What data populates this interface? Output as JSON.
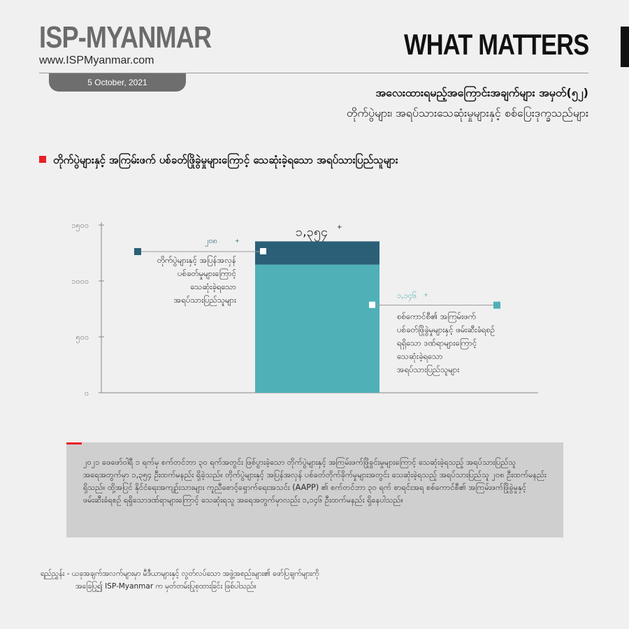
{
  "brand": {
    "name": "ISP-MYANMAR",
    "url": "www.ISPMyanmar.com",
    "date": "5 October, 2021",
    "series_title": "WHAT MATTERS"
  },
  "title": {
    "line1": "အလေးထားရမည့်အကြောင်းအချက်များ အမှတ်(၅၂)",
    "line2": "တိုက်ပွဲများ၊ အရပ်သားသေဆုံးမှုများနှင့် စစ်ပြေးဒုက္ခသည်များ"
  },
  "section_heading": "တိုက်ပွဲများနှင့် အကြမ်းဖက် ပစ်ခတ်ဖြိုခွဲမှုများကြောင့် သေဆုံးခဲ့ရသော အရပ်သားပြည်သူများ",
  "colors": {
    "bar_top": "#2b5f77",
    "bar_bottom": "#4fb0b8",
    "accent_red": "#e8202a",
    "axis": "#888888"
  },
  "chart_data": {
    "type": "bar",
    "stacked": true,
    "categories": [
      ""
    ],
    "ylim": [
      0,
      1500
    ],
    "yticks": [
      0,
      500,
      1000,
      1500
    ],
    "ytick_labels": [
      "၀",
      "၅၀၀",
      "၁၀၀၀",
      "၁၅၀၀"
    ],
    "total_label": "၁,၃၅၄",
    "total_suffix": "+",
    "grid": false,
    "series": [
      {
        "values": [
          1146
        ],
        "value_label": "၁,၁၄၆",
        "value_suffix": "+",
        "annotation": [
          "စစ်ကောင်စီ၏ အကြမ်းဖက်",
          "ပစ်ခတ်ဖြိုခွဲမှုများနှင့် ဖမ်းဆီးခံရစဉ်",
          "ရရှိသော ဒဏ်ရာများကြောင့်",
          "သေဆုံးခဲ့ရသော",
          "အရပ်သားပြည်သူများ"
        ],
        "annotation_side": "right"
      },
      {
        "values": [
          208
        ],
        "value_label": "၂၀၈",
        "value_suffix": "+",
        "annotation": [
          "တိုက်ပွဲများနှင့် အပြန်အလှန်",
          "ပစ်ခတ်မှုများကြောင့်",
          "သေဆုံးခဲ့ရသော",
          "အရပ်သားပြည်သူများ"
        ],
        "annotation_side": "left"
      }
    ]
  },
  "note": "၂၀၂၁ ဖေဖော်ဝါရီ ၁ ရက်မှ စက်တင်ဘာ ၃၀ ရက်အတွင်း ဖြစ်ပွားခဲ့သော တိုက်ပွဲများနှင့် အကြမ်းဖက်ဖြိုခွင်းမှုများကြောင့် သေဆုံးခဲ့ရသည့် အရပ်သားပြည်သူအရေအတွက်မှာ ၁,၃၅၄ ဦးထက်မနည်း ရှိခဲ့သည်။ တိုက်ပွဲများနှင့် အပြန်အလှန် ပစ်ခတ်တိုက်ခိုက်မှုများအတွင်း သေဆုံးခဲ့ရသည့် အရပ်သားပြည်သူ ၂၀၈ ဦးထက်မနည်း ရှိသည်။ ထို့အပြင် နိုင်ငံရေးအကျဉ်းသားများ ကူညီစောင့်ရှောက်ရေးအသင်း (AAPP) ၏ စက်တင်ဘာ ၃၀ ရက် စာရင်းအရ စစ်ကောင်စီ၏ အကြမ်းဖက်ဖြိုခွဲမှုနှင့် ဖမ်းဆီးခံရစဉ် ရရှိသောဒဏ်ရာများကြောင့် သေဆုံးရသူ အရေအတွက်မှာလည်း ၁,၁၄၆ ဦးထက်မနည်း ရှိနေပါသည်။",
  "source": {
    "line1": "ရည်ညွှန်း - ယခုအချက်အလက်များမှာ မီဒီယာများနှင့် လွတ်လပ်သော အဖွဲ့အစည်းများ၏ ဖော်ပြချက်များကို",
    "line2": "အခြေပြု၍ ISP-Myanmar က မှတ်တမ်းပြုစုထားခြင်း ဖြစ်ပါသည်။"
  }
}
